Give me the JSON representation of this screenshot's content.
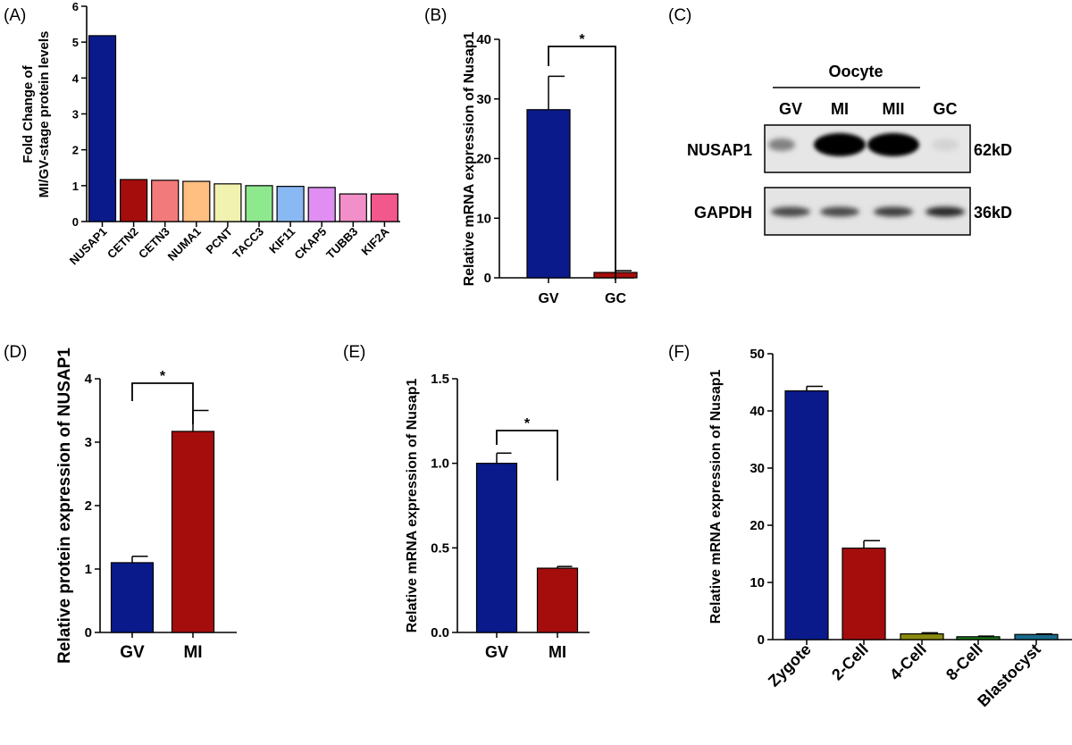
{
  "panels": {
    "A": "(A)",
    "B": "(B)",
    "C": "(C)",
    "D": "(D)",
    "E": "(E)",
    "F": "(F)"
  },
  "chart_data": [
    {
      "id": "A",
      "type": "bar",
      "ylabel_lines": [
        "Fold Change of",
        "MI/GV-stage protein levels"
      ],
      "categories": [
        "NUSAP1",
        "CETN2",
        "CETN3",
        "NUMA1",
        "PCNT",
        "TACC3",
        "KIF11",
        "CKAP5",
        "TUBB3",
        "KIF2A"
      ],
      "values": [
        5.18,
        1.17,
        1.15,
        1.12,
        1.05,
        1.0,
        0.98,
        0.95,
        0.77,
        0.77
      ],
      "colors": [
        "#0a1a8a",
        "#a50d0d",
        "#f27a7a",
        "#ffbf80",
        "#f2f2b0",
        "#8ee88e",
        "#8ab8f2",
        "#e08ef2",
        "#f28ec8",
        "#f2588c"
      ],
      "ylim": [
        0,
        6
      ],
      "yticks": [
        0,
        1,
        2,
        3,
        4,
        5,
        6
      ]
    },
    {
      "id": "B",
      "type": "bar",
      "ylabel": "Relative mRNA expression of Nusap1",
      "categories": [
        "GV",
        "GC"
      ],
      "values": [
        28.2,
        0.9
      ],
      "errors": [
        5.6,
        0.3
      ],
      "colors": [
        "#0a1a8a",
        "#a50d0d"
      ],
      "ylim": [
        0,
        40
      ],
      "yticks": [
        0,
        10,
        20,
        30,
        40
      ],
      "significance": [
        {
          "a": 0,
          "b": 1,
          "label": "*"
        }
      ]
    },
    {
      "id": "D",
      "type": "bar",
      "ylabel": "Relative protein expression of NUSAP1",
      "categories": [
        "GV",
        "MI"
      ],
      "values": [
        1.1,
        3.17
      ],
      "errors": [
        0.1,
        0.33
      ],
      "colors": [
        "#0a1a8a",
        "#a50d0d"
      ],
      "ylim": [
        0,
        4
      ],
      "yticks": [
        0,
        1,
        2,
        3,
        4
      ],
      "significance": [
        {
          "a": 0,
          "b": 1,
          "label": "*"
        }
      ]
    },
    {
      "id": "E",
      "type": "bar",
      "ylabel": "Relative mRNA expression of Nusap1",
      "categories": [
        "GV",
        "MI"
      ],
      "values": [
        1.0,
        0.38
      ],
      "errors": [
        0.06,
        0.01
      ],
      "colors": [
        "#0a1a8a",
        "#a50d0d"
      ],
      "ylim": [
        0,
        1.5
      ],
      "yticks": [
        "0.0",
        "0.5",
        "1.0",
        "1.5"
      ],
      "significance": [
        {
          "a": 0,
          "b": 1,
          "label": "*"
        }
      ]
    },
    {
      "id": "F",
      "type": "bar",
      "ylabel": "Relative mRNA expression of Nusap1",
      "categories": [
        "Zygote",
        "2-Cell",
        "4-Cell",
        "8-Cell",
        "Blastocyst"
      ],
      "values": [
        43.5,
        16.0,
        1.0,
        0.5,
        0.9
      ],
      "errors": [
        0.8,
        1.3,
        0.2,
        0.1,
        0.1
      ],
      "colors": [
        "#0a1a8a",
        "#a50d0d",
        "#8a8a10",
        "#1a7a1a",
        "#1a6a8a"
      ],
      "ylim": [
        0,
        50
      ],
      "yticks": [
        0,
        10,
        20,
        30,
        40,
        50
      ]
    }
  ],
  "western_blot": {
    "group_label": "Oocyte",
    "lanes": [
      "GV",
      "MI",
      "MII",
      "GC"
    ],
    "rows": [
      {
        "protein": "NUSAP1",
        "size": "62kD",
        "intensities": [
          0.45,
          1.0,
          1.0,
          0.08
        ]
      },
      {
        "protein": "GAPDH",
        "size": "36kD",
        "intensities": [
          0.7,
          0.7,
          0.75,
          0.85
        ]
      }
    ]
  }
}
